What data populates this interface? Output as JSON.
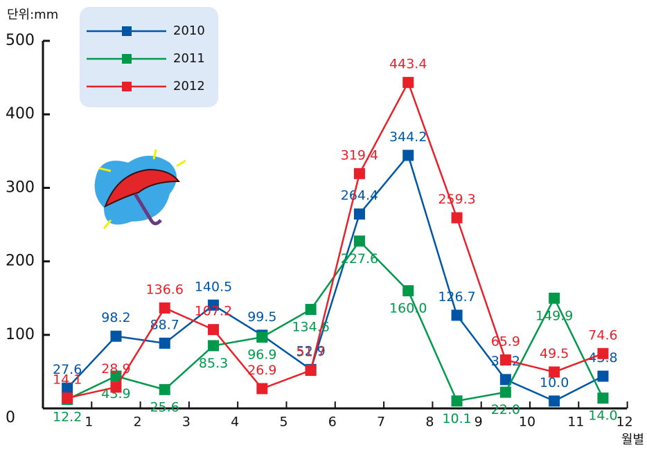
{
  "chart_data": {
    "type": "line",
    "unit_label": "단위:mm",
    "x_label": "월별",
    "categories": [
      "1",
      "2",
      "3",
      "4",
      "5",
      "6",
      "7",
      "8",
      "9",
      "10",
      "11",
      "12"
    ],
    "ylim": [
      0,
      500
    ],
    "yticks": [
      0,
      100,
      200,
      300,
      400,
      500
    ],
    "legend": "upper left",
    "series": [
      {
        "name": "2010",
        "color": "#0055a5",
        "values": [
          27.6,
          98.2,
          88.7,
          140.5,
          99.5,
          52.9,
          264.4,
          344.2,
          126.7,
          39.2,
          10.0,
          43.8
        ],
        "value_labels": [
          "27.6",
          "98.2",
          "88.7",
          "140.5",
          "99.5",
          "52.9",
          "264.4",
          "344.2",
          "126.7",
          "39.2",
          "10.0",
          "43.8"
        ]
      },
      {
        "name": "2011",
        "color": "#00994c",
        "values": [
          12.2,
          43.9,
          25.6,
          85.3,
          96.9,
          134.6,
          227.6,
          160.0,
          10.1,
          22.0,
          149.9,
          14.0
        ],
        "value_labels": [
          "12.2",
          "43.9",
          "25.6",
          "85.3",
          "96.9",
          "134.6",
          "227.6",
          "160.0",
          "10.1",
          "22.0",
          "149.9",
          "14.0"
        ]
      },
      {
        "name": "2012",
        "color": "#e8202a",
        "values": [
          14.1,
          28.9,
          136.6,
          107.2,
          26.9,
          51.7,
          319.4,
          443.4,
          259.3,
          65.9,
          49.5,
          74.6
        ],
        "value_labels": [
          "14.1",
          "28.9",
          "136.6",
          "107.2",
          "26.9",
          "51.7",
          "319.4",
          "443.4",
          "259.3",
          "65.9",
          "49.5",
          "74.6"
        ]
      }
    ]
  }
}
